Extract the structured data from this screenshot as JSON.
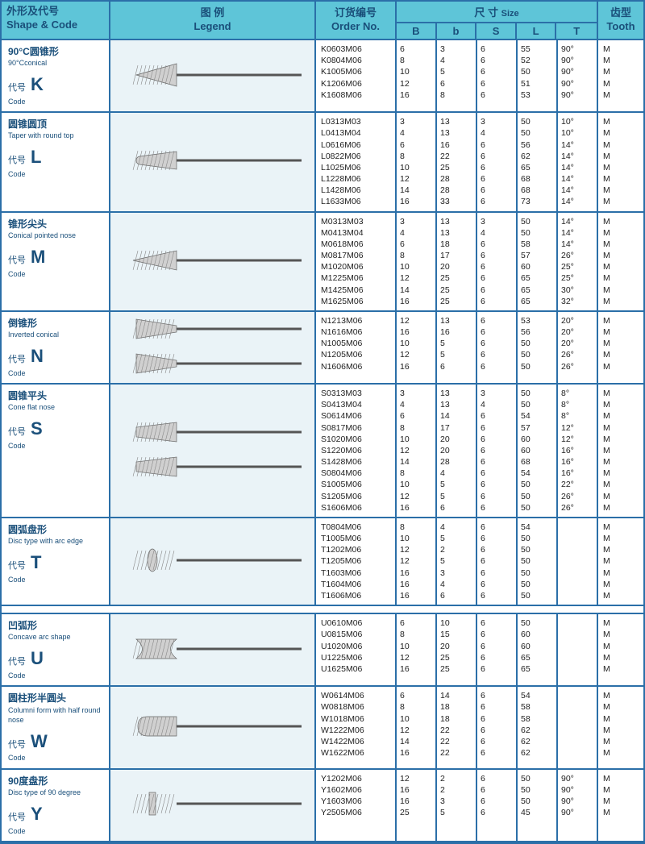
{
  "header": {
    "shape_cn": "外形及代号",
    "shape_en": "Shape & Code",
    "legend_cn": "图 例",
    "legend_en": "Legend",
    "order_cn": "订货编号",
    "order_en": "Order No.",
    "size_cn": "尺 寸",
    "size_en": "Size",
    "tooth_cn": "齿型",
    "tooth_en": "Tooth",
    "cols": [
      "B",
      "b",
      "S",
      "L",
      "T"
    ]
  },
  "sections": [
    {
      "code": "K",
      "cn": "90°C圆锥形",
      "en": "90°Cconical",
      "code_cn": "代号",
      "code_en": "Code",
      "shapes": [
        "conical90"
      ],
      "rows": [
        {
          "order": "K0603M06",
          "B": "6",
          "b": "3",
          "S": "6",
          "L": "55",
          "T": "90°",
          "tooth": "M"
        },
        {
          "order": "K0804M06",
          "B": "8",
          "b": "4",
          "S": "6",
          "L": "52",
          "T": "90°",
          "tooth": "M"
        },
        {
          "order": "K1005M06",
          "B": "10",
          "b": "5",
          "S": "6",
          "L": "50",
          "T": "90°",
          "tooth": "M"
        },
        {
          "order": "K1206M06",
          "B": "12",
          "b": "6",
          "S": "6",
          "L": "51",
          "T": "90°",
          "tooth": "M"
        },
        {
          "order": "K1608M06",
          "B": "16",
          "b": "8",
          "S": "6",
          "L": "53",
          "T": "90°",
          "tooth": "M"
        }
      ]
    },
    {
      "code": "L",
      "cn": "圆锥圆顶",
      "en": "Taper with round top",
      "code_cn": "代号",
      "code_en": "Code",
      "shapes": [
        "taper-round"
      ],
      "rows": [
        {
          "order": "L0313M03",
          "B": "3",
          "b": "13",
          "S": "3",
          "L": "50",
          "T": "10°",
          "tooth": "M"
        },
        {
          "order": "L0413M04",
          "B": "4",
          "b": "13",
          "S": "4",
          "L": "50",
          "T": "10°",
          "tooth": "M"
        },
        {
          "order": "L0616M06",
          "B": "6",
          "b": "16",
          "S": "6",
          "L": "56",
          "T": "14°",
          "tooth": "M"
        },
        {
          "order": "L0822M06",
          "B": "8",
          "b": "22",
          "S": "6",
          "L": "62",
          "T": "14°",
          "tooth": "M"
        },
        {
          "order": "L1025M06",
          "B": "10",
          "b": "25",
          "S": "6",
          "L": "65",
          "T": "14°",
          "tooth": "M"
        },
        {
          "order": "L1228M06",
          "B": "12",
          "b": "28",
          "S": "6",
          "L": "68",
          "T": "14°",
          "tooth": "M"
        },
        {
          "order": "L1428M06",
          "B": "14",
          "b": "28",
          "S": "6",
          "L": "68",
          "T": "14°",
          "tooth": "M"
        },
        {
          "order": "L1633M06",
          "B": "16",
          "b": "33",
          "S": "6",
          "L": "73",
          "T": "14°",
          "tooth": "M"
        }
      ]
    },
    {
      "code": "M",
      "cn": "锥形尖头",
      "en": "Conical pointed nose",
      "code_cn": "代号",
      "code_en": "Code",
      "shapes": [
        "pointed"
      ],
      "rows": [
        {
          "order": "M0313M03",
          "B": "3",
          "b": "13",
          "S": "3",
          "L": "50",
          "T": "14°",
          "tooth": "M"
        },
        {
          "order": "M0413M04",
          "B": "4",
          "b": "13",
          "S": "4",
          "L": "50",
          "T": "14°",
          "tooth": "M"
        },
        {
          "order": "M0618M06",
          "B": "6",
          "b": "18",
          "S": "6",
          "L": "58",
          "T": "14°",
          "tooth": "M"
        },
        {
          "order": "M0817M06",
          "B": "8",
          "b": "17",
          "S": "6",
          "L": "57",
          "T": "26°",
          "tooth": "M"
        },
        {
          "order": "M1020M06",
          "B": "10",
          "b": "20",
          "S": "6",
          "L": "60",
          "T": "25°",
          "tooth": "M"
        },
        {
          "order": "M1225M06",
          "B": "12",
          "b": "25",
          "S": "6",
          "L": "65",
          "T": "25°",
          "tooth": "M"
        },
        {
          "order": "M1425M06",
          "B": "14",
          "b": "25",
          "S": "6",
          "L": "65",
          "T": "30°",
          "tooth": "M"
        },
        {
          "order": "M1625M06",
          "B": "16",
          "b": "25",
          "S": "6",
          "L": "65",
          "T": "32°",
          "tooth": "M"
        }
      ]
    },
    {
      "code": "N",
      "cn": "倒锥形",
      "en": "Inverted conical",
      "code_cn": "代号",
      "code_en": "Code",
      "shapes": [
        "inverted",
        "inverted"
      ],
      "rows": [
        {
          "order": "N1213M06",
          "B": "12",
          "b": "13",
          "S": "6",
          "L": "53",
          "T": "20°",
          "tooth": "M"
        },
        {
          "order": "N1616M06",
          "B": "16",
          "b": "16",
          "S": "6",
          "L": "56",
          "T": "20°",
          "tooth": "M"
        },
        {
          "order": "N1005M06",
          "B": "10",
          "b": "5",
          "S": "6",
          "L": "50",
          "T": "20°",
          "tooth": "M"
        },
        {
          "order": "N1205M06",
          "B": "12",
          "b": "5",
          "S": "6",
          "L": "50",
          "T": "26°",
          "tooth": "M"
        },
        {
          "order": "N1606M06",
          "B": "16",
          "b": "6",
          "S": "6",
          "L": "50",
          "T": "26°",
          "tooth": "M"
        }
      ]
    },
    {
      "code": "S",
      "cn": "圆锥平头",
      "en": "Cone flat nose",
      "code_cn": "代号",
      "code_en": "Code",
      "shapes": [
        "cone-flat",
        "cone-flat"
      ],
      "rows": [
        {
          "order": "S0313M03",
          "B": "3",
          "b": "13",
          "S": "3",
          "L": "50",
          "T": "8°",
          "tooth": "M"
        },
        {
          "order": "S0413M04",
          "B": "4",
          "b": "13",
          "S": "4",
          "L": "50",
          "T": "8°",
          "tooth": "M"
        },
        {
          "order": "S0614M06",
          "B": "6",
          "b": "14",
          "S": "6",
          "L": "54",
          "T": "8°",
          "tooth": "M"
        },
        {
          "order": "S0817M06",
          "B": "8",
          "b": "17",
          "S": "6",
          "L": "57",
          "T": "12°",
          "tooth": "M"
        },
        {
          "order": "S1020M06",
          "B": "10",
          "b": "20",
          "S": "6",
          "L": "60",
          "T": "12°",
          "tooth": "M"
        },
        {
          "order": "S1220M06",
          "B": "12",
          "b": "20",
          "S": "6",
          "L": "60",
          "T": "16°",
          "tooth": "M"
        },
        {
          "order": "S1428M06",
          "B": "14",
          "b": "28",
          "S": "6",
          "L": "68",
          "T": "16°",
          "tooth": "M"
        },
        {
          "order": "S0804M06",
          "B": "8",
          "b": "4",
          "S": "6",
          "L": "54",
          "T": "16°",
          "tooth": "M"
        },
        {
          "order": "S1005M06",
          "B": "10",
          "b": "5",
          "S": "6",
          "L": "50",
          "T": "22°",
          "tooth": "M"
        },
        {
          "order": "S1205M06",
          "B": "12",
          "b": "5",
          "S": "6",
          "L": "50",
          "T": "26°",
          "tooth": "M"
        },
        {
          "order": "S1606M06",
          "B": "16",
          "b": "6",
          "S": "6",
          "L": "50",
          "T": "26°",
          "tooth": "M"
        }
      ]
    },
    {
      "code": "T",
      "cn": "圆弧盘形",
      "en": "Disc type with arc edge",
      "code_cn": "代号",
      "code_en": "Code",
      "shapes": [
        "disc-arc"
      ],
      "rows": [
        {
          "order": "T0804M06",
          "B": "8",
          "b": "4",
          "S": "6",
          "L": "54",
          "T": "",
          "tooth": "M"
        },
        {
          "order": "T1005M06",
          "B": "10",
          "b": "5",
          "S": "6",
          "L": "50",
          "T": "",
          "tooth": "M"
        },
        {
          "order": "T1202M06",
          "B": "12",
          "b": "2",
          "S": "6",
          "L": "50",
          "T": "",
          "tooth": "M"
        },
        {
          "order": "T1205M06",
          "B": "12",
          "b": "5",
          "S": "6",
          "L": "50",
          "T": "",
          "tooth": "M"
        },
        {
          "order": "T1603M06",
          "B": "16",
          "b": "3",
          "S": "6",
          "L": "50",
          "T": "",
          "tooth": "M"
        },
        {
          "order": "T1604M06",
          "B": "16",
          "b": "4",
          "S": "6",
          "L": "50",
          "T": "",
          "tooth": "M"
        },
        {
          "order": "T1606M06",
          "B": "16",
          "b": "6",
          "S": "6",
          "L": "50",
          "T": "",
          "tooth": "M"
        }
      ]
    },
    {
      "code": "U",
      "cn": "凹弧形",
      "en": "Concave arc shape",
      "code_cn": "代号",
      "code_en": "Code",
      "shapes": [
        "concave"
      ],
      "rows": [
        {
          "order": "U0610M06",
          "B": "6",
          "b": "10",
          "S": "6",
          "L": "50",
          "T": "",
          "tooth": "M"
        },
        {
          "order": "U0815M06",
          "B": "8",
          "b": "15",
          "S": "6",
          "L": "60",
          "T": "",
          "tooth": "M"
        },
        {
          "order": "U1020M06",
          "B": "10",
          "b": "20",
          "S": "6",
          "L": "60",
          "T": "",
          "tooth": "M"
        },
        {
          "order": "U1225M06",
          "B": "12",
          "b": "25",
          "S": "6",
          "L": "65",
          "T": "",
          "tooth": "M"
        },
        {
          "order": "U1625M06",
          "B": "16",
          "b": "25",
          "S": "6",
          "L": "65",
          "T": "",
          "tooth": "M"
        }
      ]
    },
    {
      "code": "W",
      "cn": "圆柱形半圆头",
      "en": "Columni form with half round nose",
      "code_cn": "代号",
      "code_en": "Code",
      "shapes": [
        "cylinder-round"
      ],
      "rows": [
        {
          "order": "W0614M06",
          "B": "6",
          "b": "14",
          "S": "6",
          "L": "54",
          "T": "",
          "tooth": "M"
        },
        {
          "order": "W0818M06",
          "B": "8",
          "b": "18",
          "S": "6",
          "L": "58",
          "T": "",
          "tooth": "M"
        },
        {
          "order": "W1018M06",
          "B": "10",
          "b": "18",
          "S": "6",
          "L": "58",
          "T": "",
          "tooth": "M"
        },
        {
          "order": "W1222M06",
          "B": "12",
          "b": "22",
          "S": "6",
          "L": "62",
          "T": "",
          "tooth": "M"
        },
        {
          "order": "W1422M06",
          "B": "14",
          "b": "22",
          "S": "6",
          "L": "62",
          "T": "",
          "tooth": "M"
        },
        {
          "order": "W1622M06",
          "B": "16",
          "b": "22",
          "S": "6",
          "L": "62",
          "T": "",
          "tooth": "M"
        }
      ]
    },
    {
      "code": "Y",
      "cn": "90度盘形",
      "en": "Disc type of 90 degree",
      "code_cn": "代号",
      "code_en": "Code",
      "shapes": [
        "disc-90"
      ],
      "rows": [
        {
          "order": "Y1202M06",
          "B": "12",
          "b": "2",
          "S": "6",
          "L": "50",
          "T": "90°",
          "tooth": "M"
        },
        {
          "order": "Y1602M06",
          "B": "16",
          "b": "2",
          "S": "6",
          "L": "50",
          "T": "90°",
          "tooth": "M"
        },
        {
          "order": "Y1603M06",
          "B": "16",
          "b": "3",
          "S": "6",
          "L": "50",
          "T": "90°",
          "tooth": "M"
        },
        {
          "order": "Y2505M06",
          "B": "25",
          "b": "5",
          "S": "6",
          "L": "45",
          "T": "90°",
          "tooth": "M"
        }
      ]
    }
  ],
  "gap_after": [
    "T"
  ]
}
